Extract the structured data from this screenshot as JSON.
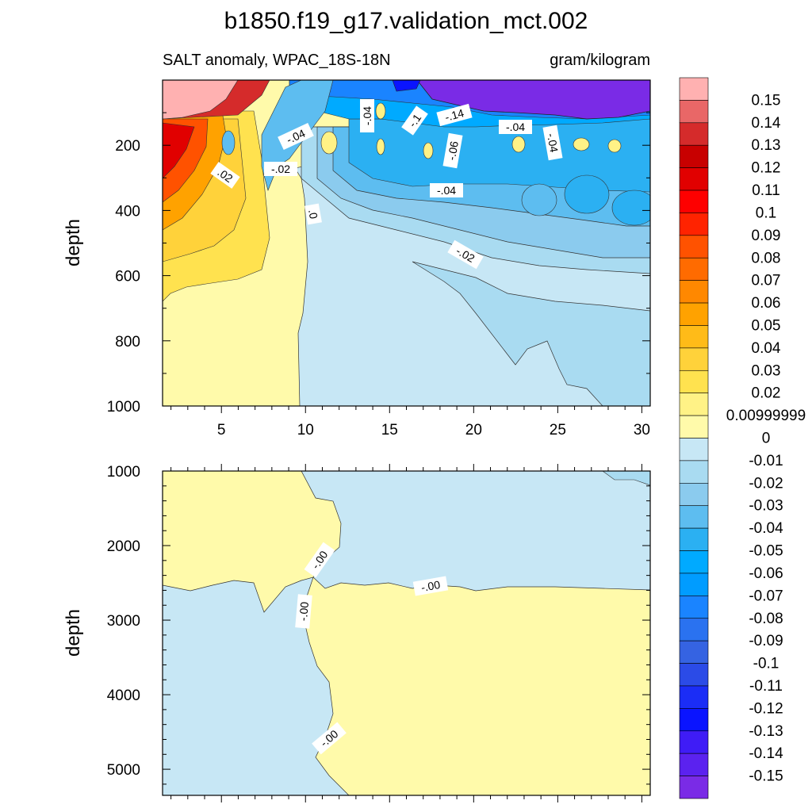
{
  "chart_data": {
    "type": "heatmap",
    "title": "b1850.f19_g17.validation_mct.002",
    "subtitle_left": "SALT anomaly, WPAC_18S-18N",
    "subtitle_right": "gram/kilogram",
    "panels": [
      {
        "ylabel": "depth",
        "ylim": [
          0,
          1000
        ],
        "yticks": [
          "200",
          "400",
          "600",
          "800",
          "1000"
        ],
        "xlim": [
          1.5,
          30.5
        ],
        "xticks": [
          "5",
          "10",
          "15",
          "20",
          "25",
          "30"
        ],
        "contour_labels": [
          "-.04",
          "-.04",
          "-.1",
          "-.14",
          "-.04",
          "-.04",
          "-.06",
          "-.04",
          "-.02",
          "-.02",
          ".02",
          ".0",
          "-.04"
        ]
      },
      {
        "ylabel": "depth",
        "ylim": [
          1000,
          5350
        ],
        "yticks": [
          "1000",
          "2000",
          "3000",
          "4000",
          "5000"
        ],
        "contour_labels": [
          "-.00",
          "-.00",
          "-.00",
          "-.00"
        ]
      }
    ],
    "colorbar": {
      "labels": [
        "0.15",
        "0.14",
        "0.13",
        "0.12",
        "0.11",
        "0.1",
        "0.09",
        "0.08",
        "0.07",
        "0.06",
        "0.05",
        "0.04",
        "0.03",
        "0.02",
        "0.00999999",
        "0",
        "-0.01",
        "-0.02",
        "-0.03",
        "-0.04",
        "-0.05",
        "-0.06",
        "-0.07",
        "-0.08",
        "-0.09",
        "-0.1",
        "-0.11",
        "-0.12",
        "-0.13",
        "-0.14",
        "-0.15"
      ],
      "colors": [
        "#ffb1b1",
        "#e96767",
        "#d52b2b",
        "#c80000",
        "#e10000",
        "#fe0000",
        "#ff2300",
        "#ff5200",
        "#ff6b00",
        "#ff8800",
        "#ffa200",
        "#ffbb18",
        "#ffd23a",
        "#ffe24f",
        "#fff286",
        "#fffaaa",
        "#c7e7f5",
        "#a9dbf1",
        "#8bcbee",
        "#5dbdf0",
        "#2bb0f2",
        "#00aaff",
        "#009cff",
        "#1a84ff",
        "#2a72f0",
        "#3563e2",
        "#2b4be7",
        "#1b2df6",
        "#0a14ff",
        "#3f1cf6",
        "#5b22ef",
        "#7a2be6"
      ]
    }
  }
}
